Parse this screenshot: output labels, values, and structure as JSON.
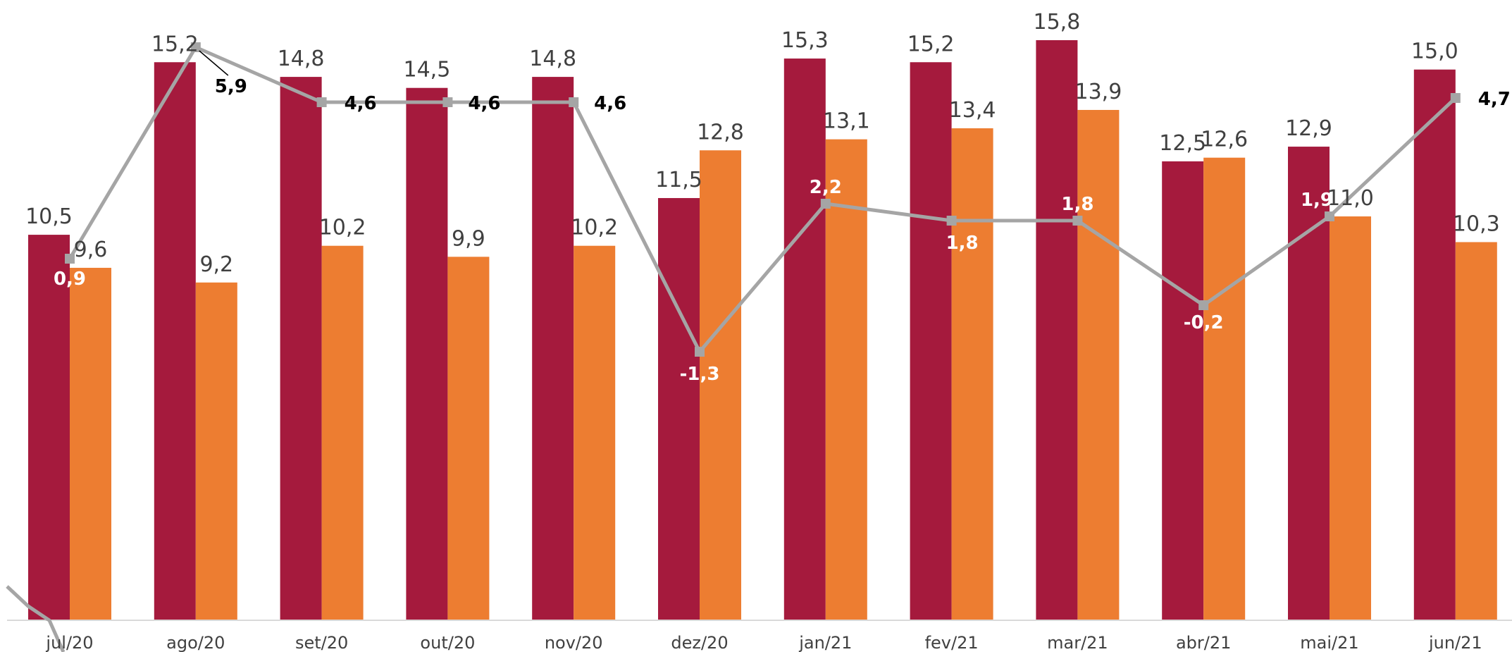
{
  "chart_data": {
    "type": "bar",
    "title": "",
    "xlabel": "",
    "ylabel": "",
    "categories": [
      "jul/20",
      "ago/20",
      "set/20",
      "out/20",
      "nov/20",
      "dez/20",
      "jan/21",
      "fev/21",
      "mar/21",
      "abr/21",
      "mai/21",
      "jun/21"
    ],
    "series": [
      {
        "kind": "bar",
        "color": "#A51A3D",
        "values": [
          10.5,
          15.2,
          14.8,
          14.5,
          14.8,
          11.5,
          15.3,
          15.2,
          15.8,
          12.5,
          12.9,
          15.0
        ],
        "labels": [
          "10,5",
          "15,2",
          "14,8",
          "14,5",
          "14,8",
          "11,5",
          "15,3",
          "15,2",
          "15,8",
          "12,5",
          "12,9",
          "15,0"
        ]
      },
      {
        "kind": "bar",
        "color": "#ED7D31",
        "values": [
          9.6,
          9.2,
          10.2,
          9.9,
          10.2,
          12.8,
          13.1,
          13.4,
          13.9,
          12.6,
          11.0,
          10.3
        ],
        "labels": [
          "9,6",
          "9,2",
          "10,2",
          "9,9",
          "10,2",
          "12,8",
          "13,1",
          "13,4",
          "13,9",
          "12,6",
          "11,0",
          "10,3"
        ]
      },
      {
        "kind": "line",
        "color": "#A5A5A5",
        "values": [
          0.9,
          5.9,
          4.6,
          4.6,
          4.6,
          -1.3,
          2.2,
          1.8,
          1.8,
          -0.2,
          1.9,
          4.7
        ],
        "labels": [
          "0,9",
          "5,9",
          "4,6",
          "4,6",
          "4,6",
          "-1,3",
          "2,2",
          "1,8",
          "1,8",
          "-0,2",
          "1,9",
          "4,7"
        ]
      }
    ],
    "grid": false,
    "legend": "none"
  }
}
